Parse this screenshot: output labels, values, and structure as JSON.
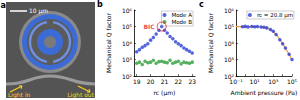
{
  "image_panel": {
    "label": "a",
    "scale_bar": "10 μm",
    "light_in": "Light in",
    "light_out": "Light out"
  },
  "chart_data": [
    {
      "type": "scatter",
      "title": "b",
      "x_label": "rc (μm)",
      "y_label": "Mechanical Q factor",
      "log": "y",
      "xlim": [
        18.8,
        23.2
      ],
      "xticks": [
        19,
        20,
        21,
        22,
        23
      ],
      "ylim": [
        100,
        1000000
      ],
      "yticks": [
        {
          "value": 100,
          "label": "10²"
        },
        {
          "value": 1000,
          "label": "10³"
        },
        {
          "value": 10000,
          "label": "10⁴"
        },
        {
          "value": 100000,
          "label": "10⁵"
        },
        {
          "value": 1000000,
          "label": "10⁶"
        }
      ],
      "legend": "upper right",
      "x": [
        19.0,
        19.2,
        19.4,
        19.6,
        19.8,
        20.0,
        20.2,
        20.4,
        20.6,
        20.8,
        21.0,
        21.2,
        21.4,
        21.6,
        21.8,
        22.0,
        22.2,
        22.4,
        22.6,
        22.8,
        23.0
      ],
      "series": [
        {
          "name": "Mode A",
          "color": "#2b3fd8",
          "marker": "circle",
          "values": [
            3000,
            4000,
            5500,
            7000,
            9000,
            15000,
            22000,
            35000,
            60000,
            100000,
            60000,
            40000,
            25000,
            18000,
            12000,
            9000,
            7000,
            5000,
            4000,
            3200,
            2500
          ]
        },
        {
          "name": "Mode B",
          "color": "#2e9e3a",
          "marker": "circle",
          "values": [
            600,
            700,
            500,
            800,
            650,
            700,
            900,
            600,
            750,
            800,
            700,
            650,
            900,
            600,
            700,
            800,
            550,
            700,
            650,
            600,
            700
          ]
        }
      ],
      "annotations": [
        {
          "text": "BIC",
          "x": 20.8,
          "y": 100000,
          "color": "#e02020"
        }
      ]
    },
    {
      "type": "scatter",
      "title": "c",
      "x_label": "Ambient pressure (Pa)",
      "y_label": "Mechanical Q factor",
      "log": true,
      "xlim": [
        0.1,
        100000
      ],
      "xticks": [
        {
          "value": 0.1,
          "label": "10⁻¹"
        },
        {
          "value": 10,
          "label": "10¹"
        },
        {
          "value": 1000,
          "label": "10³"
        },
        {
          "value": 100000,
          "label": "10⁵"
        }
      ],
      "ylim": [
        100,
        1000000
      ],
      "yticks": [
        {
          "value": 100,
          "label": "10²"
        },
        {
          "value": 1000,
          "label": "10³"
        },
        {
          "value": 10000,
          "label": "10⁴"
        },
        {
          "value": 100000,
          "label": "10⁵"
        },
        {
          "value": 1000000,
          "label": "10⁶"
        }
      ],
      "legend": "upper right",
      "series": [
        {
          "name": "rc = 20.8 μm",
          "color": "#2b3fd8",
          "marker": "circle",
          "x": [
            0.5,
            1,
            2,
            5,
            10,
            20,
            50,
            100,
            200,
            500,
            1000,
            2000,
            5000,
            10000,
            20000,
            50000,
            100000
          ],
          "values": [
            98000,
            102000,
            95000,
            100000,
            97000,
            99000,
            94000,
            90000,
            83000,
            66000,
            52000,
            33000,
            16000,
            9000,
            5000,
            2100,
            1000
          ]
        },
        {
          "type": "line",
          "color": "#f39c3a",
          "line_style": "solid",
          "x": [
            0.1,
            1,
            10,
            100,
            300,
            1000,
            3000,
            10000,
            30000,
            100000
          ],
          "values": [
            100000,
            99990,
            99900,
            91000,
            77000,
            50000,
            25000,
            9200,
            3300,
            1000
          ]
        }
      ]
    }
  ]
}
